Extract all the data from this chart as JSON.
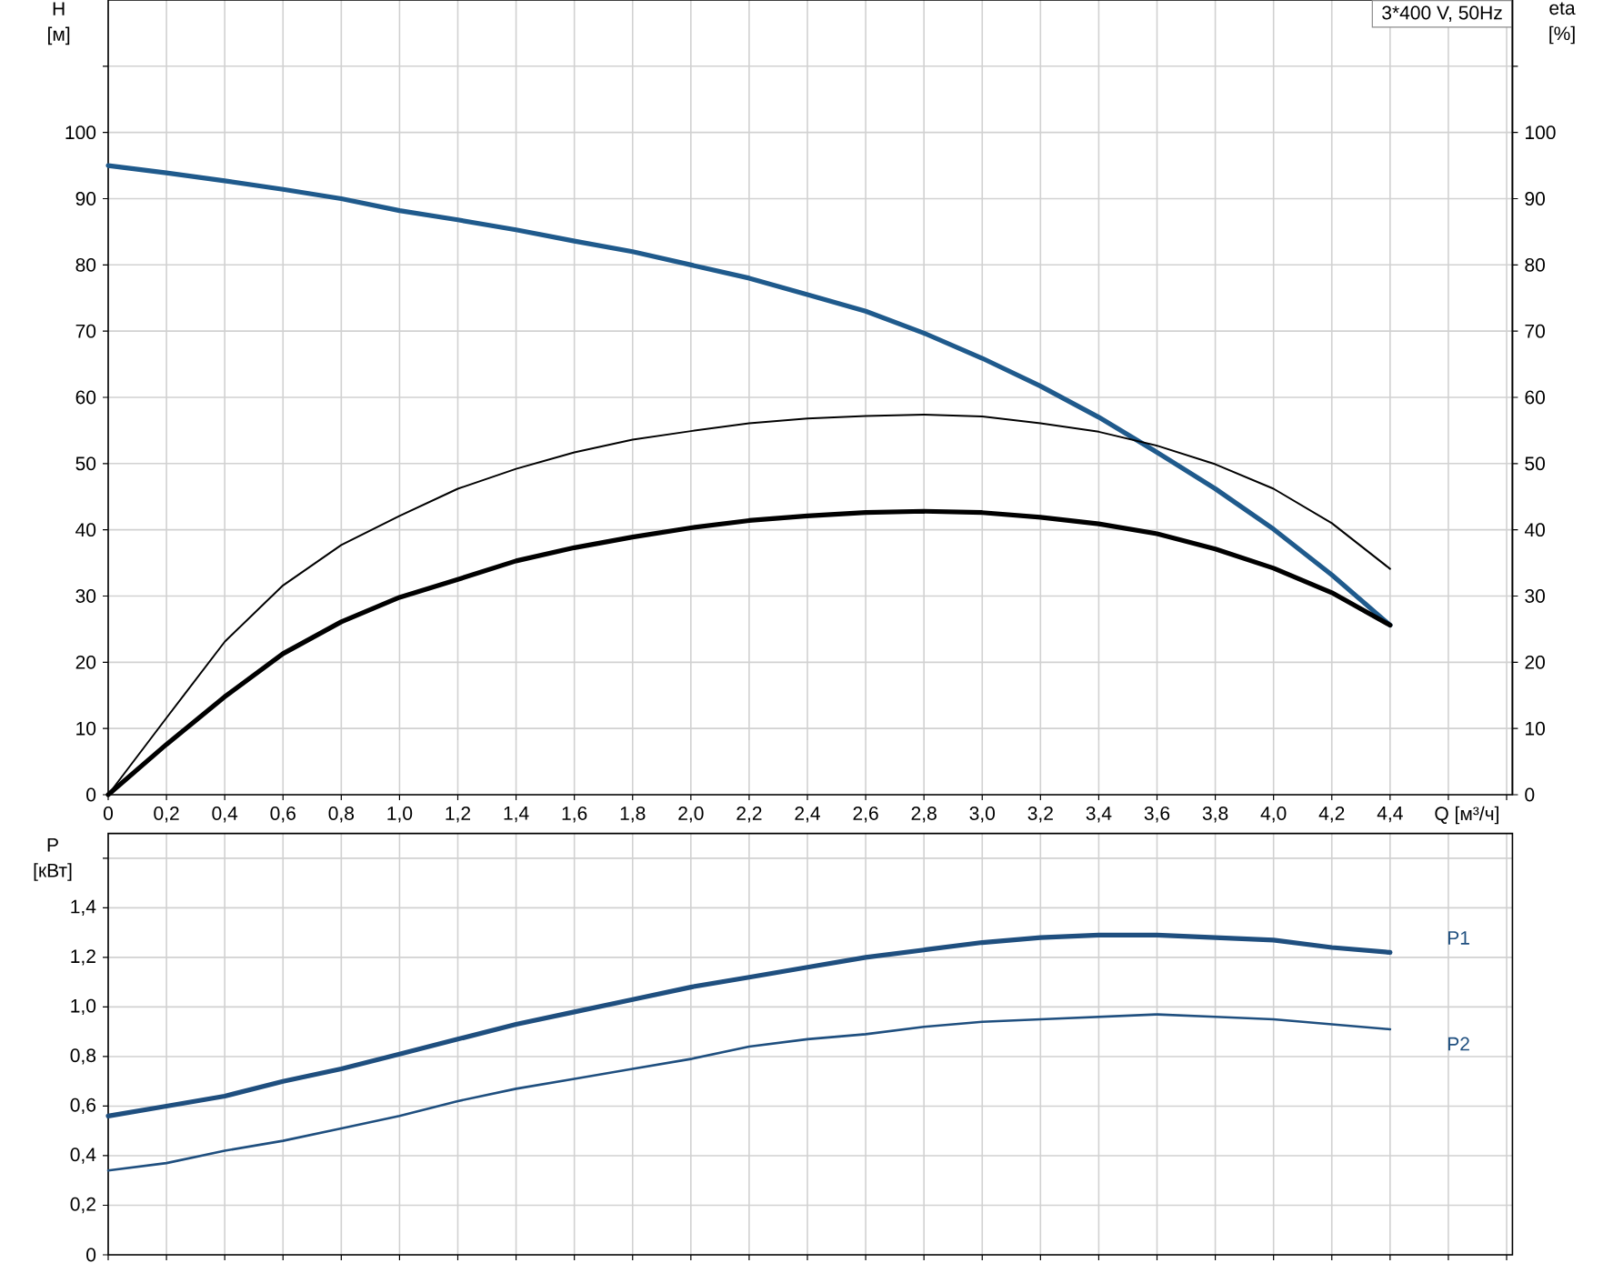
{
  "chart_data": [
    {
      "type": "line",
      "xlabel": "Q [м³/ч]",
      "ylabel": "H [м]",
      "y2label": "eta [%]",
      "annotations": [
        "3*400 V, 50Hz"
      ],
      "xlim": [
        0,
        4.82
      ],
      "xticks": [
        0,
        {
          "value": 0.2,
          "label": "0,2"
        },
        {
          "value": 0.4,
          "label": "0,4"
        },
        {
          "value": 0.6,
          "label": "0,6"
        },
        {
          "value": 0.8,
          "label": "0,8"
        },
        {
          "value": 1.0,
          "label": "1,0"
        },
        {
          "value": 1.2,
          "label": "1,2"
        },
        {
          "value": 1.4,
          "label": "1,4"
        },
        {
          "value": 1.6,
          "label": "1,6"
        },
        {
          "value": 1.8,
          "label": "1,8"
        },
        {
          "value": 2.0,
          "label": "2,0"
        },
        {
          "value": 2.2,
          "label": "2,2"
        },
        {
          "value": 2.4,
          "label": "2,4"
        },
        {
          "value": 2.6,
          "label": "2,6"
        },
        {
          "value": 2.8,
          "label": "2,8"
        },
        {
          "value": 3.0,
          "label": "3,0"
        },
        {
          "value": 3.2,
          "label": "3,2"
        },
        {
          "value": 3.4,
          "label": "3,4"
        },
        {
          "value": 3.6,
          "label": "3,6"
        },
        {
          "value": 3.8,
          "label": "3,8"
        },
        {
          "value": 4.0,
          "label": "4,0"
        },
        {
          "value": 4.2,
          "label": "4,2"
        },
        {
          "value": 4.4,
          "label": "4,4"
        },
        {
          "value": 4.6,
          "label": null
        },
        {
          "value": 4.8,
          "label": null
        }
      ],
      "ylim": [
        0,
        120
      ],
      "yticks": [
        0,
        10,
        20,
        30,
        40,
        50,
        60,
        70,
        80,
        90,
        100,
        {
          "value": 110,
          "label": null
        }
      ],
      "y2lim": [
        0,
        120
      ],
      "y2ticks": [
        0,
        10,
        20,
        30,
        40,
        50,
        60,
        70,
        80,
        90,
        100,
        {
          "value": 110,
          "label": null
        }
      ],
      "grid": true,
      "x": [
        0,
        0.2,
        0.4,
        0.6,
        0.8,
        1.0,
        1.2,
        1.4,
        1.6,
        1.8,
        2.0,
        2.2,
        2.4,
        2.6,
        2.8,
        3.0,
        3.2,
        3.4,
        3.6,
        3.8,
        4.0,
        4.2,
        4.4
      ],
      "series": [
        {
          "color": "#1f5a8c",
          "values": [
            95.0,
            93.9,
            92.7,
            91.4,
            90.0,
            88.2,
            86.8,
            85.3,
            83.6,
            82.0,
            80.0,
            78.0,
            75.5,
            73.0,
            69.7,
            65.9,
            61.7,
            57.0,
            51.7,
            46.2,
            40.1,
            33.2,
            25.6
          ]
        },
        {
          "color": "#000000",
          "axis": "y2",
          "values": [
            0,
            11.6,
            23.1,
            31.6,
            37.7,
            42.1,
            46.2,
            49.2,
            51.7,
            53.6,
            54.9,
            56.1,
            56.8,
            57.2,
            57.4,
            57.1,
            56.1,
            54.8,
            52.7,
            49.9,
            46.2,
            41.0,
            34.1
          ]
        },
        {
          "color": "#000000",
          "axis": "y2",
          "values": [
            0,
            7.6,
            14.8,
            21.3,
            26.1,
            29.8,
            32.5,
            35.3,
            37.3,
            38.9,
            40.3,
            41.4,
            42.1,
            42.6,
            42.8,
            42.6,
            41.9,
            40.9,
            39.4,
            37.1,
            34.2,
            30.5,
            25.6
          ]
        }
      ]
    },
    {
      "type": "line",
      "ylabel": "P [кВт]",
      "tick_labels": "y",
      "xlim": [
        0,
        4.82
      ],
      "xticks": [
        0,
        0.2,
        0.4,
        0.6,
        0.8,
        1.0,
        1.2,
        1.4,
        1.6,
        1.8,
        2.0,
        2.2,
        2.4,
        2.6,
        2.8,
        3.0,
        3.2,
        3.4,
        3.6,
        3.8,
        4.0,
        4.2,
        4.4,
        4.6,
        4.8
      ],
      "ylim": [
        0,
        1.7
      ],
      "yticks": [
        0,
        {
          "value": 0.2,
          "label": "0,2"
        },
        {
          "value": 0.4,
          "label": "0,4"
        },
        {
          "value": 0.6,
          "label": "0,6"
        },
        {
          "value": 0.8,
          "label": "0,8"
        },
        {
          "value": 1.0,
          "label": "1,0"
        },
        {
          "value": 1.2,
          "label": "1,2"
        },
        {
          "value": 1.4,
          "label": "1,4"
        },
        {
          "value": 1.6,
          "label": null
        }
      ],
      "grid": true,
      "x": [
        0,
        0.2,
        0.4,
        0.6,
        0.8,
        1.0,
        1.2,
        1.4,
        1.6,
        1.8,
        2.0,
        2.2,
        2.4,
        2.6,
        2.8,
        3.0,
        3.2,
        3.4,
        3.6,
        3.8,
        4.0,
        4.2,
        4.4
      ],
      "series": [
        {
          "name": "P1",
          "color": "#1f4f7f",
          "values": [
            0.56,
            0.6,
            0.64,
            0.7,
            0.75,
            0.81,
            0.87,
            0.93,
            0.98,
            1.03,
            1.08,
            1.12,
            1.16,
            1.2,
            1.23,
            1.26,
            1.28,
            1.29,
            1.29,
            1.28,
            1.27,
            1.24,
            1.22
          ]
        },
        {
          "name": "P2",
          "color": "#1f4f7f",
          "values": [
            0.34,
            0.37,
            0.42,
            0.46,
            0.51,
            0.56,
            0.62,
            0.67,
            0.71,
            0.75,
            0.79,
            0.84,
            0.87,
            0.89,
            0.92,
            0.94,
            0.95,
            0.96,
            0.97,
            0.96,
            0.95,
            0.93,
            0.91
          ]
        }
      ]
    }
  ]
}
